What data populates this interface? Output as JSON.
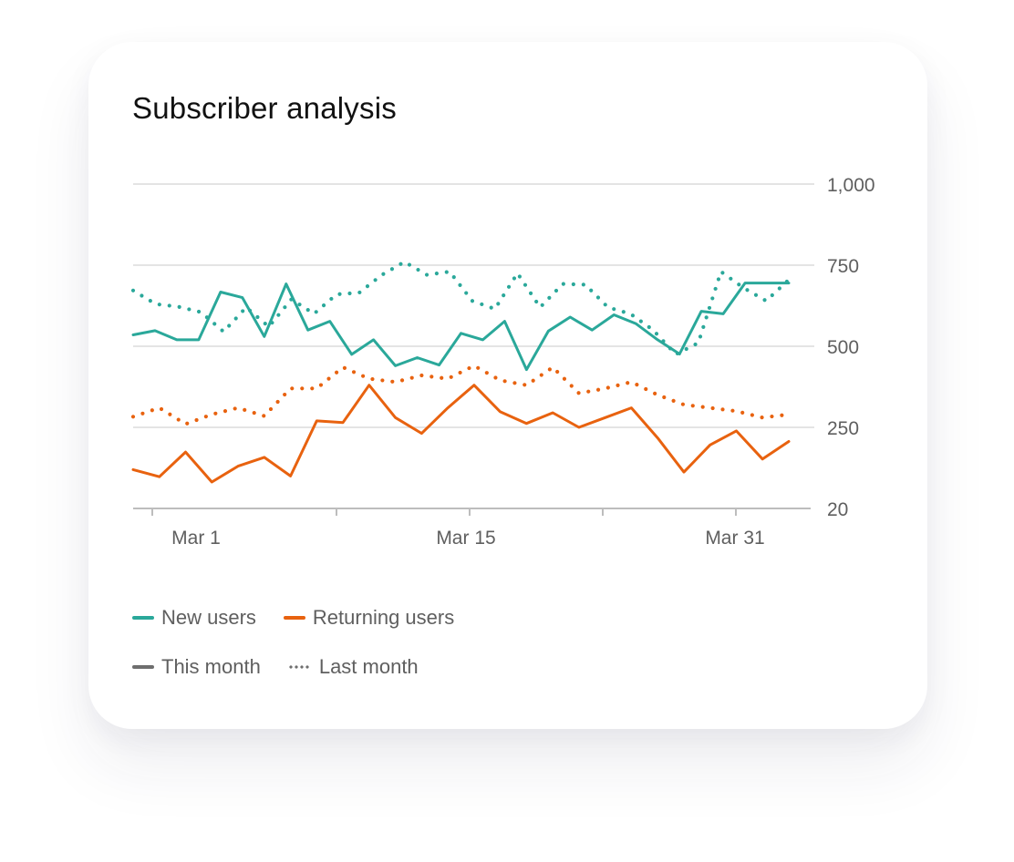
{
  "card": {
    "title": "Subscriber analysis"
  },
  "chart_data": {
    "type": "line",
    "title": "Subscriber analysis",
    "xlabel": "",
    "ylabel": "",
    "y_ticks": [
      {
        "value": 20,
        "label": "20"
      },
      {
        "value": 250,
        "label": "250"
      },
      {
        "value": 500,
        "label": "500"
      },
      {
        "value": 750,
        "label": "750"
      },
      {
        "value": 1000,
        "label": "1,000"
      }
    ],
    "x_tick_labels": [
      "Mar 1",
      "Mar 15",
      "Mar 31"
    ],
    "y_axis_side": "right",
    "grid": true,
    "legend_placement": "bottom",
    "colors": {
      "new_users": "#2aa89a",
      "returning_users": "#e8620f",
      "grid": "#dcdcdc",
      "axis": "#bdbdbd",
      "label": "#5f5f5f"
    },
    "series": [
      {
        "name": "New users",
        "period": "This month",
        "style": "solid",
        "color": "#2aa89a",
        "values": [
          535,
          548,
          520,
          520,
          667,
          650,
          530,
          692,
          550,
          577,
          475,
          520,
          440,
          465,
          442,
          540,
          520,
          577,
          428,
          547,
          590,
          550,
          597,
          570,
          520,
          476,
          608,
          600,
          695,
          695,
          695
        ]
      },
      {
        "name": "New users",
        "period": "Last month",
        "style": "dotted",
        "color": "#2aa89a",
        "values": [
          672,
          630,
          622,
          605,
          545,
          620,
          560,
          645,
          600,
          660,
          665,
          720,
          760,
          720,
          730,
          640,
          615,
          725,
          620,
          692,
          690,
          620,
          600,
          550,
          475,
          510,
          730,
          680,
          640,
          705
        ]
      },
      {
        "name": "Returning users",
        "period": "This month",
        "style": "solid",
        "color": "#e8620f",
        "values": [
          130,
          110,
          180,
          95,
          140,
          165,
          112,
          270,
          265,
          380,
          280,
          233,
          310,
          380,
          298,
          262,
          295,
          250,
          280,
          310,
          220,
          123,
          200,
          240,
          160,
          210
        ]
      },
      {
        "name": "Returning users",
        "period": "Last month",
        "style": "dotted",
        "color": "#e8620f",
        "values": [
          283,
          310,
          260,
          290,
          310,
          285,
          370,
          370,
          435,
          400,
          390,
          410,
          400,
          440,
          395,
          380,
          435,
          355,
          370,
          390,
          350,
          320,
          310,
          300,
          280,
          290
        ]
      }
    ]
  },
  "legend": {
    "series": [
      {
        "label": "New users",
        "color": "#2aa89a"
      },
      {
        "label": "Returning users",
        "color": "#e8620f"
      }
    ],
    "styles": [
      {
        "label": "This month",
        "style": "solid"
      },
      {
        "label": "Last month",
        "style": "dotted"
      }
    ]
  }
}
